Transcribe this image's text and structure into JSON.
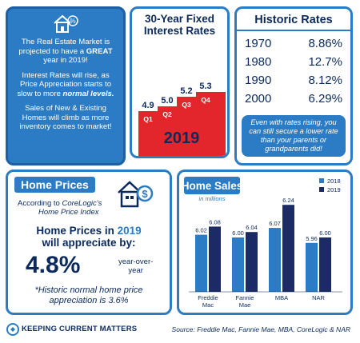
{
  "intro": {
    "p1_a": "The Real Estate Market is projected to have a ",
    "p1_b": "GREAT",
    "p1_c": " year in 2019!",
    "p2_a": "Interest Rates will rise, as Price Appreciation starts to slow to more ",
    "p2_b": "normal levels.",
    "p3": "Sales of New & Existing Homes will climb as more inventory comes to market!"
  },
  "rates30": {
    "title_line1": "30-Year Fixed",
    "title_line2": "Interest Rates",
    "year": "2019"
  },
  "historic": {
    "title": "Historic Rates",
    "rows": [
      {
        "year": "1970",
        "rate": "8.86%"
      },
      {
        "year": "1980",
        "rate": "12.7%"
      },
      {
        "year": "1990",
        "rate": "8.12%"
      },
      {
        "year": "2000",
        "rate": "6.29%"
      }
    ],
    "note": "Even with rates rising, you can still secure a lower rate than your parents or grandparents did!"
  },
  "prices": {
    "header": "Home Prices",
    "sub1": "According to ",
    "sub1_em": "CoreLogic's",
    "sub2": "Home Price Index",
    "line1_a": "Home Prices in ",
    "line1_b": "2019",
    "line2": "will appreciate by:",
    "pct": "4.8%",
    "yoy1": "year-over-",
    "yoy2": "year",
    "hist1": "*Historic normal home price",
    "hist2": "appreciation is 3.6%"
  },
  "sales": {
    "title": "Home Sales",
    "subtitle": "in millions"
  },
  "footer": {
    "brand": "KEEPING CURRENT MATTERS",
    "source": "Source: Freddie Mac, Fannie Mae, MBA, CoreLogic & NAR"
  },
  "colors": {
    "accent_blue": "#2b7cc4",
    "navy": "#0a2a5e",
    "red": "#e3262b",
    "bar_2018": "#2b7cc4",
    "bar_2019": "#1c2a66"
  },
  "chart_data": [
    {
      "type": "bar",
      "title": "30-Year Fixed Interest Rates",
      "categories": [
        "Q1",
        "Q2",
        "Q3",
        "Q4"
      ],
      "values": [
        4.9,
        5.0,
        5.2,
        5.3
      ],
      "value_labels": [
        "4.9",
        "5.0",
        "5.2",
        "5.3"
      ]
    },
    {
      "type": "bar",
      "title": "Home Sales",
      "subtitle": "in millions",
      "categories": [
        "Freddie Mac",
        "Fannie Mae",
        "MBA",
        "NAR"
      ],
      "series": [
        {
          "name": "2018",
          "values": [
            6.02,
            6.0,
            6.07,
            5.96
          ],
          "labels": [
            "6.02",
            "6.00",
            "6.07",
            "5.96"
          ]
        },
        {
          "name": "2019",
          "values": [
            6.08,
            6.04,
            6.24,
            6.0
          ],
          "labels": [
            "6.08",
            "6.04",
            "6.24",
            "6.00"
          ]
        }
      ],
      "legend": "top-right"
    }
  ]
}
